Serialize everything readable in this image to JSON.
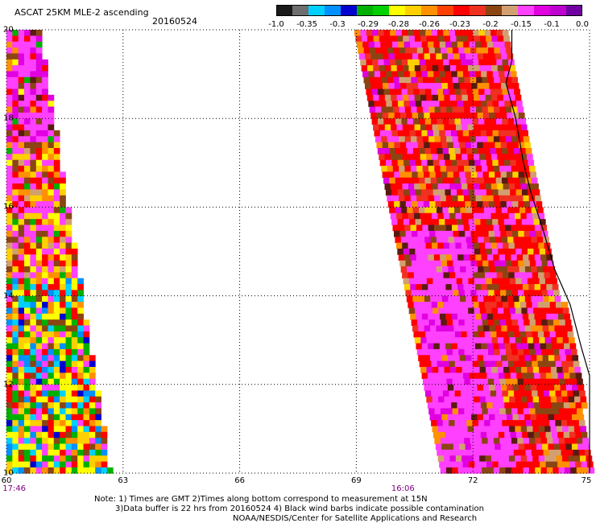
{
  "header": {
    "title": "ASCAT 25KM MLE-2 ascending",
    "date": "20160524"
  },
  "colorbar": {
    "colors": [
      "#1a1a1a",
      "#6e6e6e",
      "#00d0ff",
      "#0090ff",
      "#0000d0",
      "#00b000",
      "#00d000",
      "#ffff00",
      "#ffd000",
      "#ff9000",
      "#ff4000",
      "#ff0000",
      "#f03020",
      "#8b4513",
      "#d2a070",
      "#ff40ff",
      "#e000e0",
      "#c000d0",
      "#7000a0"
    ],
    "tick_labels": [
      "-1.0",
      "-0.35",
      "-0.3",
      "-0.29",
      "-0.28",
      "-0.26",
      "-0.23",
      "-0.2",
      "-0.15",
      "-0.1",
      "0.0"
    ]
  },
  "map": {
    "lat_labels": [
      "20",
      "18",
      "16",
      "14",
      "12",
      "10"
    ],
    "lon_labels": [
      "60",
      "63",
      "66",
      "69",
      "72",
      "75"
    ],
    "time_labels": [
      {
        "text": "17:46",
        "lon": 60.2
      },
      {
        "text": "16:06",
        "lon": 70.2
      }
    ]
  },
  "notes": {
    "line1": "Note: 1) Times are GMT 2)Times along bottom correspond to measurement at 15N",
    "line2": "3)Data buffer is 22 hrs from 20160524 4) Black wind barbs indicate possible contamination",
    "line3": "NOAA/NESDIS/Center for Satellite Applications and Research"
  }
}
